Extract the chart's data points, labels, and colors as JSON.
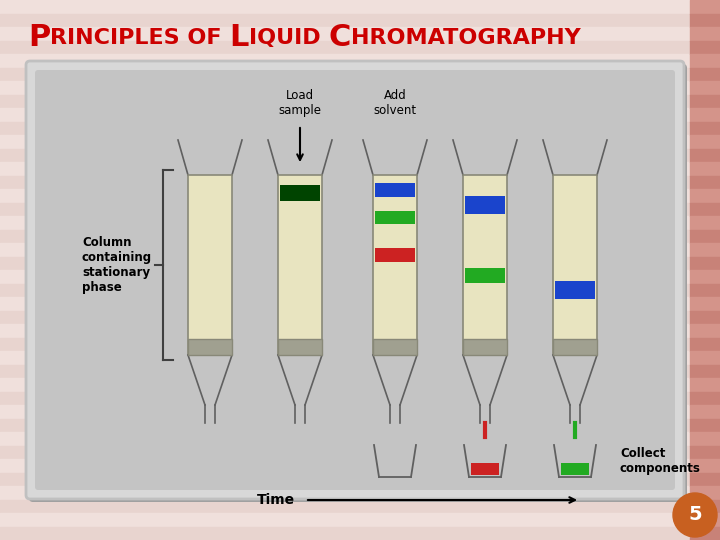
{
  "title_parts": [
    {
      "text": "P",
      "big": true
    },
    {
      "text": "rinciples of ",
      "big": false
    },
    {
      "text": "L",
      "big": true
    },
    {
      "text": "iquid ",
      "big": false
    },
    {
      "text": "C",
      "big": true
    },
    {
      "text": "hromatography",
      "big": false
    }
  ],
  "slide_number": "5",
  "bg_stripe1": "#f0e0dc",
  "bg_stripe2": "#e8d4cf",
  "right_stripe1": "#d4948a",
  "right_stripe2": "#c88278",
  "panel_bg": "#c8c8c8",
  "panel_inner_bg": "#c0c0c0",
  "column_fill": "#e8e4c0",
  "column_border": "#888878",
  "frit_color": "#a0a090",
  "labels": {
    "load_sample": "Load\nsample",
    "add_solvent": "Add\nsolvent",
    "column_text": "Column\ncontaining\nstationary\nphase",
    "collect": "Collect\ncomponents",
    "time": "Time"
  },
  "badge_color": "#c86020"
}
